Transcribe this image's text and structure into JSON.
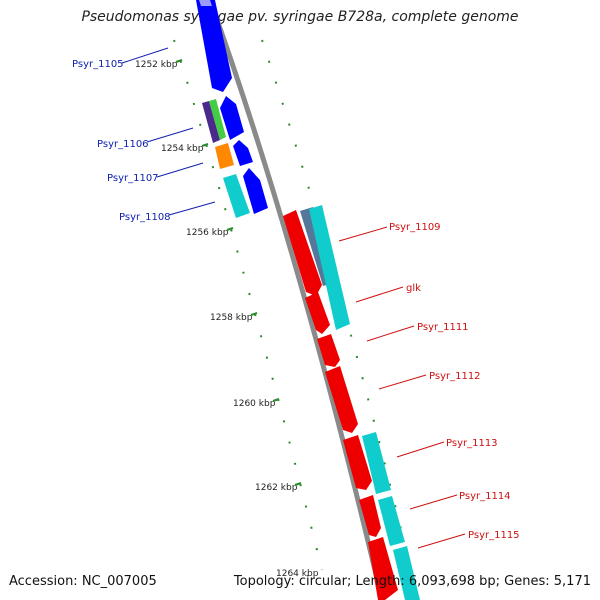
{
  "title": "Pseudomonas syringae pv. syringae B728a, complete genome",
  "footer": {
    "accession": "Accession: NC_007005",
    "topology": "Topology: circular; Length: 6,093,698 bp; Genes: 5,171"
  },
  "colors": {
    "backbone": "#8a8a8a",
    "tick": "#2d8a2d",
    "left_label": "#1020b0",
    "right_label": "#cc1010",
    "forward_strand": "#ff0000",
    "reverse_strand": "#0000ff"
  },
  "scale_labels": [
    "1252 kbp",
    "1254 kbp",
    "1256 kbp",
    "1258 kbp",
    "1260 kbp",
    "1262 kbp",
    "1264 kbp"
  ],
  "left_genes": [
    {
      "label": "Psyr_1105"
    },
    {
      "label": "Psyr_1106"
    },
    {
      "label": "Psyr_1107"
    },
    {
      "label": "Psyr_1108"
    }
  ],
  "right_genes": [
    {
      "label": "Psyr_1109"
    },
    {
      "label": "glk"
    },
    {
      "label": "Psyr_1111"
    },
    {
      "label": "Psyr_1112"
    },
    {
      "label": "Psyr_1113"
    },
    {
      "label": "Psyr_1114"
    },
    {
      "label": "Psyr_1115"
    }
  ]
}
